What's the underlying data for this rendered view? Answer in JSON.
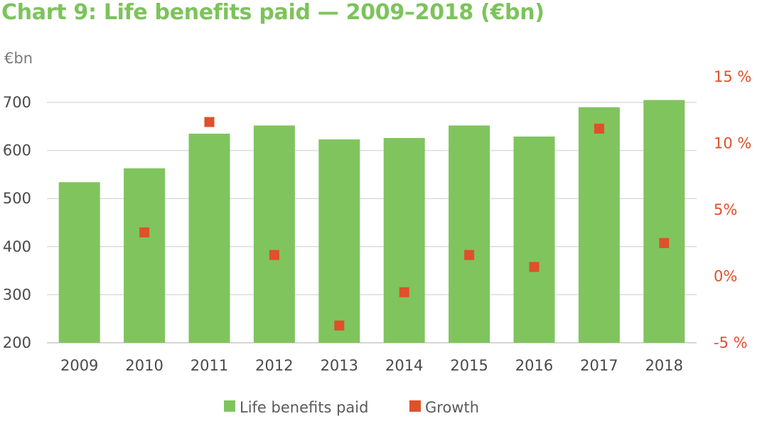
{
  "title": "Chart 9: Life benefits paid — 2009–2018 (€bn)",
  "chart_data": {
    "type": "bar",
    "categories": [
      "2009",
      "2010",
      "2011",
      "2012",
      "2013",
      "2014",
      "2015",
      "2016",
      "2017",
      "2018"
    ],
    "series": [
      {
        "name": "Life benefits paid",
        "type": "bar",
        "axis": "left",
        "color": "#80c45e",
        "values": [
          534,
          563,
          635,
          652,
          623,
          626,
          652,
          629,
          690,
          705
        ]
      },
      {
        "name": "Growth",
        "type": "scatter",
        "axis": "right",
        "color": "#e0502a",
        "values": [
          null,
          3.3,
          11.6,
          1.6,
          -3.7,
          -1.2,
          1.6,
          0.7,
          11.1,
          2.5
        ]
      }
    ],
    "left_axis": {
      "unit_label": "€bn",
      "ylim": [
        200,
        720
      ],
      "ticks": [
        200,
        300,
        400,
        500,
        600,
        700
      ],
      "tick_labels": [
        "200",
        "300",
        "400",
        "500",
        "600",
        "700"
      ]
    },
    "right_axis": {
      "ylim": [
        -5,
        15
      ],
      "ticks": [
        -5,
        0,
        5,
        10,
        15
      ],
      "tick_labels": [
        "-5 %",
        "0%",
        "5%",
        "10 %",
        "15 %"
      ]
    },
    "grid": true,
    "legend_position": "bottom-center",
    "colors": {
      "title": "#7dc35b",
      "bar": "#80c45e",
      "marker": "#e0502a",
      "right_axis_text": "#e0502a",
      "gridline": "#dcdcdc"
    }
  }
}
